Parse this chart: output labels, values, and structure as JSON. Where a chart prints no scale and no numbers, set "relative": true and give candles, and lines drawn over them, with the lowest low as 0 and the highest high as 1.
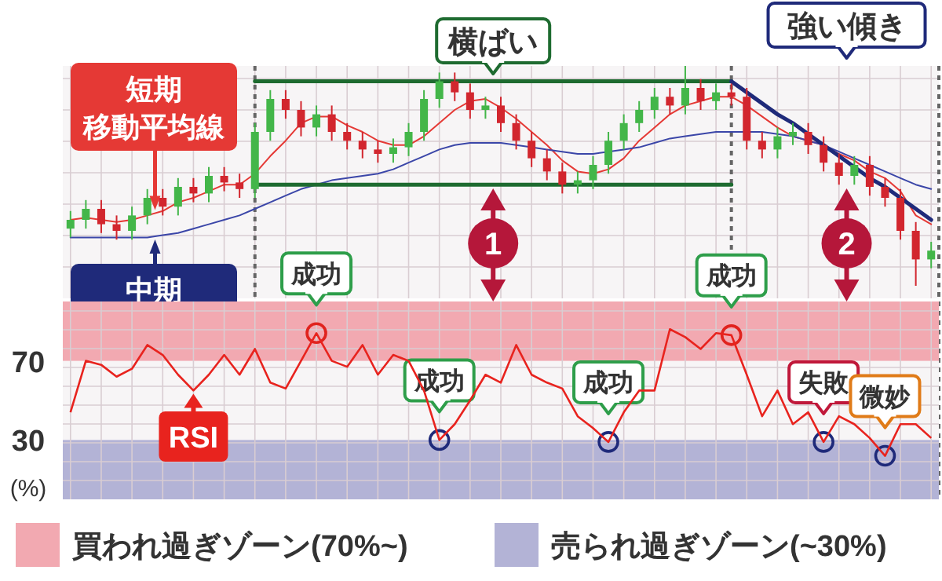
{
  "chart_data": [
    {
      "type": "candlestick",
      "relative": true,
      "grid": true,
      "tick_labels": false,
      "categories": [
        null,
        null,
        null,
        null,
        null,
        null,
        null,
        null,
        null,
        null,
        null,
        null,
        null,
        null,
        null,
        null,
        null,
        null,
        null,
        null,
        null,
        null,
        null,
        null,
        null,
        null,
        null,
        null,
        null,
        null,
        null,
        null,
        null,
        null,
        null,
        null,
        null,
        null,
        null,
        null,
        null,
        null,
        null,
        null,
        null,
        null,
        null,
        null,
        null,
        null,
        null,
        null,
        null,
        null,
        null,
        null,
        null
      ],
      "ohlc": [
        [
          0.26,
          0.34,
          0.22,
          0.3
        ],
        [
          0.3,
          0.39,
          0.26,
          0.35
        ],
        [
          0.35,
          0.39,
          0.24,
          0.28
        ],
        [
          0.28,
          0.32,
          0.21,
          0.25
        ],
        [
          0.25,
          0.36,
          0.21,
          0.32
        ],
        [
          0.32,
          0.44,
          0.28,
          0.4
        ],
        [
          0.4,
          0.44,
          0.32,
          0.36
        ],
        [
          0.36,
          0.49,
          0.32,
          0.45
        ],
        [
          0.45,
          0.49,
          0.38,
          0.42
        ],
        [
          0.42,
          0.54,
          0.38,
          0.5
        ],
        [
          0.5,
          0.54,
          0.43,
          0.47
        ],
        [
          0.47,
          0.51,
          0.4,
          0.44
        ],
        [
          0.44,
          0.74,
          0.4,
          0.7
        ],
        [
          0.7,
          0.89,
          0.66,
          0.85
        ],
        [
          0.85,
          0.89,
          0.76,
          0.8
        ],
        [
          0.8,
          0.84,
          0.68,
          0.72
        ],
        [
          0.72,
          0.82,
          0.68,
          0.78
        ],
        [
          0.78,
          0.82,
          0.66,
          0.7
        ],
        [
          0.7,
          0.74,
          0.62,
          0.66
        ],
        [
          0.66,
          0.7,
          0.58,
          0.62
        ],
        [
          0.62,
          0.66,
          0.56,
          0.6
        ],
        [
          0.6,
          0.67,
          0.56,
          0.63
        ],
        [
          0.63,
          0.74,
          0.59,
          0.7
        ],
        [
          0.7,
          0.89,
          0.66,
          0.85
        ],
        [
          0.85,
          0.97,
          0.81,
          0.93
        ],
        [
          0.93,
          0.97,
          0.84,
          0.88
        ],
        [
          0.88,
          0.92,
          0.76,
          0.8
        ],
        [
          0.8,
          0.86,
          0.76,
          0.82
        ],
        [
          0.82,
          0.86,
          0.7,
          0.74
        ],
        [
          0.74,
          0.78,
          0.62,
          0.66
        ],
        [
          0.66,
          0.7,
          0.54,
          0.58
        ],
        [
          0.58,
          0.62,
          0.48,
          0.52
        ],
        [
          0.52,
          0.56,
          0.42,
          0.46
        ],
        [
          0.46,
          0.52,
          0.42,
          0.48
        ],
        [
          0.48,
          0.59,
          0.44,
          0.55
        ],
        [
          0.55,
          0.7,
          0.51,
          0.66
        ],
        [
          0.66,
          0.78,
          0.62,
          0.74
        ],
        [
          0.74,
          0.84,
          0.7,
          0.8
        ],
        [
          0.8,
          0.9,
          0.76,
          0.86
        ],
        [
          0.86,
          0.9,
          0.78,
          0.82
        ],
        [
          0.82,
          1.0,
          0.78,
          0.9
        ],
        [
          0.9,
          0.94,
          0.8,
          0.84
        ],
        [
          0.84,
          0.92,
          0.8,
          0.88
        ],
        [
          0.88,
          0.92,
          0.82,
          0.86
        ],
        [
          0.86,
          0.9,
          0.62,
          0.66
        ],
        [
          0.66,
          0.7,
          0.58,
          0.62
        ],
        [
          0.62,
          0.72,
          0.58,
          0.68
        ],
        [
          0.68,
          0.74,
          0.64,
          0.7
        ],
        [
          0.7,
          0.74,
          0.6,
          0.64
        ],
        [
          0.64,
          0.68,
          0.52,
          0.56
        ],
        [
          0.56,
          0.6,
          0.46,
          0.5
        ],
        [
          0.5,
          0.59,
          0.46,
          0.55
        ],
        [
          0.55,
          0.59,
          0.41,
          0.45
        ],
        [
          0.45,
          0.49,
          0.36,
          0.4
        ],
        [
          0.4,
          0.44,
          0.21,
          0.25
        ],
        [
          0.25,
          0.29,
          0.0,
          0.12
        ],
        [
          0.12,
          0.2,
          0.08,
          0.16
        ]
      ],
      "series": [
        {
          "name": "短期移動平均線",
          "type": "line",
          "color": "#e53935",
          "values": [
            0.3,
            0.31,
            0.3,
            0.29,
            0.3,
            0.32,
            0.34,
            0.38,
            0.4,
            0.43,
            0.46,
            0.46,
            0.51,
            0.59,
            0.66,
            0.74,
            0.77,
            0.77,
            0.73,
            0.7,
            0.66,
            0.64,
            0.64,
            0.68,
            0.74,
            0.8,
            0.84,
            0.85,
            0.81,
            0.76,
            0.7,
            0.64,
            0.57,
            0.52,
            0.51,
            0.53,
            0.58,
            0.66,
            0.72,
            0.78,
            0.82,
            0.84,
            0.86,
            0.86,
            0.82,
            0.77,
            0.72,
            0.68,
            0.66,
            0.64,
            0.6,
            0.57,
            0.52,
            0.49,
            0.43,
            0.32,
            0.28
          ]
        },
        {
          "name": "中期移動平均線",
          "type": "line",
          "color": "#3b46a8",
          "values": [
            0.22,
            0.22,
            0.22,
            0.22,
            0.22,
            0.22,
            0.23,
            0.24,
            0.26,
            0.28,
            0.3,
            0.32,
            0.35,
            0.38,
            0.41,
            0.44,
            0.46,
            0.48,
            0.49,
            0.5,
            0.51,
            0.53,
            0.56,
            0.59,
            0.62,
            0.64,
            0.65,
            0.65,
            0.65,
            0.64,
            0.63,
            0.62,
            0.61,
            0.6,
            0.6,
            0.61,
            0.62,
            0.63,
            0.65,
            0.67,
            0.68,
            0.69,
            0.7,
            0.7,
            0.7,
            0.7,
            0.69,
            0.68,
            0.66,
            0.64,
            0.61,
            0.58,
            0.55,
            0.52,
            0.49,
            0.46,
            0.44
          ]
        },
        {
          "type": "line",
          "color": "#1e6b30",
          "values": [
            null,
            null,
            null,
            null,
            null,
            null,
            null,
            null,
            null,
            null,
            null,
            null,
            0.93,
            0.93,
            0.93,
            0.93,
            0.93,
            0.93,
            0.93,
            0.93,
            0.93,
            0.93,
            0.93,
            0.93,
            0.93,
            0.93,
            0.93,
            0.93,
            0.93,
            0.93,
            0.93,
            0.93,
            0.93,
            0.93,
            0.93,
            0.93,
            0.93,
            0.93,
            0.93,
            0.93,
            0.93,
            0.93,
            0.93,
            0.93,
            null,
            null,
            null,
            null,
            null,
            null,
            null,
            null,
            null,
            null,
            null,
            null,
            null
          ]
        },
        {
          "type": "line",
          "color": "#1e6b30",
          "values": [
            null,
            null,
            null,
            null,
            null,
            null,
            null,
            null,
            null,
            null,
            null,
            null,
            0.46,
            0.46,
            0.46,
            0.46,
            0.46,
            0.46,
            0.46,
            0.46,
            0.46,
            0.46,
            0.46,
            0.46,
            0.46,
            0.46,
            0.46,
            0.46,
            0.46,
            0.46,
            0.46,
            0.46,
            0.46,
            0.46,
            0.46,
            0.46,
            0.46,
            0.46,
            0.46,
            0.46,
            0.46,
            0.46,
            0.46,
            0.46,
            null,
            null,
            null,
            null,
            null,
            null,
            null,
            null,
            null,
            null,
            null,
            null,
            null
          ]
        },
        {
          "type": "line",
          "color": "#1f2a7a",
          "values": [
            null,
            null,
            null,
            null,
            null,
            null,
            null,
            null,
            null,
            null,
            null,
            null,
            null,
            null,
            null,
            null,
            null,
            null,
            null,
            null,
            null,
            null,
            null,
            null,
            null,
            null,
            null,
            null,
            null,
            null,
            null,
            null,
            null,
            null,
            null,
            null,
            null,
            null,
            null,
            null,
            null,
            null,
            null,
            0.93,
            0.88,
            0.83,
            0.78,
            0.74,
            0.69,
            0.64,
            0.59,
            0.54,
            0.49,
            0.45,
            0.4,
            0.35,
            0.3
          ]
        }
      ],
      "annotations": [
        "横ばい",
        "強い傾き",
        "1",
        "2"
      ]
    },
    {
      "type": "line",
      "grid": true,
      "ylim": [
        0,
        100
      ],
      "yticks": [
        70,
        30
      ],
      "ylabel": "(%)",
      "tick_labels": "y",
      "legend": "bottom",
      "categories": [
        null,
        null,
        null,
        null,
        null,
        null,
        null,
        null,
        null,
        null,
        null,
        null,
        null,
        null,
        null,
        null,
        null,
        null,
        null,
        null,
        null,
        null,
        null,
        null,
        null,
        null,
        null,
        null,
        null,
        null,
        null,
        null,
        null,
        null,
        null,
        null,
        null,
        null,
        null,
        null,
        null,
        null,
        null,
        null,
        null,
        null,
        null,
        null,
        null,
        null,
        null,
        null,
        null,
        null,
        null,
        null,
        null
      ],
      "series": [
        {
          "name": "RSI",
          "color": "#e8231e",
          "values": [
            44,
            70,
            68,
            62,
            66,
            78,
            73,
            63,
            55,
            63,
            73,
            63,
            76,
            59,
            56,
            70,
            84,
            70,
            67,
            78,
            63,
            73,
            70,
            55,
            30,
            38,
            50,
            63,
            59,
            78,
            63,
            59,
            56,
            42,
            36,
            29,
            44,
            55,
            55,
            86,
            82,
            76,
            84,
            83,
            63,
            42,
            55,
            38,
            44,
            29,
            42,
            38,
            31,
            22,
            38,
            38,
            31
          ]
        }
      ],
      "bands": [
        {
          "axis": "y",
          "from": 70,
          "to": 100,
          "label": "買われ過ぎゾーン(70%~)",
          "color": "#f2a9b1"
        },
        {
          "axis": "y",
          "from": 0,
          "to": 30,
          "label": "売られ過ぎゾーン(~30%)",
          "color": "#b3b3d6"
        }
      ],
      "annotations": [
        {
          "text": "成功",
          "y": 84
        },
        {
          "text": "成功",
          "y": 30
        },
        {
          "text": "成功",
          "y": 29
        },
        {
          "text": "成功",
          "y": 83
        },
        {
          "text": "失敗",
          "y": 29
        },
        {
          "text": "微妙",
          "y": 22
        }
      ]
    }
  ]
}
